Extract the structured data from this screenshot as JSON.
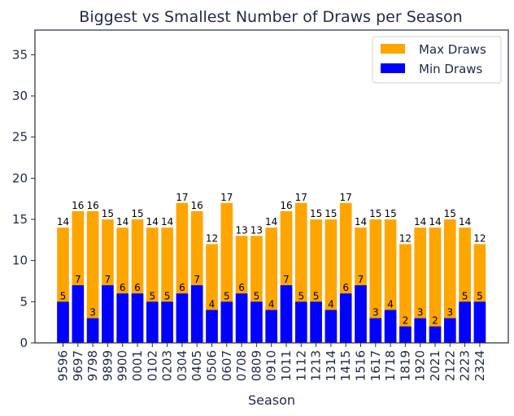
{
  "chart_data": {
    "type": "bar",
    "title": "Biggest vs Smallest Number of Draws per Season",
    "xlabel": "Season",
    "ylabel": "",
    "ylim": [
      0,
      38
    ],
    "yticks": [
      0,
      5,
      10,
      15,
      20,
      25,
      30,
      35
    ],
    "grid": false,
    "legend_position": "top-right",
    "overlay": true,
    "categories": [
      "9596",
      "9697",
      "9798",
      "9899",
      "9900",
      "0001",
      "0102",
      "0203",
      "0304",
      "0405",
      "0506",
      "0607",
      "0708",
      "0809",
      "0910",
      "1011",
      "1112",
      "1213",
      "1314",
      "1415",
      "1516",
      "1617",
      "1718",
      "1819",
      "1920",
      "2021",
      "2122",
      "2223",
      "2324"
    ],
    "series": [
      {
        "name": "Max Draws",
        "color": "#FFA500",
        "values": [
          14,
          16,
          16,
          15,
          14,
          15,
          14,
          14,
          17,
          16,
          12,
          17,
          13,
          13,
          14,
          16,
          17,
          15,
          15,
          17,
          14,
          15,
          15,
          12,
          14,
          14,
          15,
          14,
          12
        ]
      },
      {
        "name": "Min Draws",
        "color": "#0000FF",
        "values": [
          5,
          7,
          3,
          7,
          6,
          6,
          5,
          5,
          6,
          7,
          4,
          5,
          6,
          5,
          4,
          7,
          5,
          5,
          4,
          6,
          7,
          3,
          4,
          2,
          3,
          2,
          3,
          5,
          5
        ]
      }
    ]
  }
}
